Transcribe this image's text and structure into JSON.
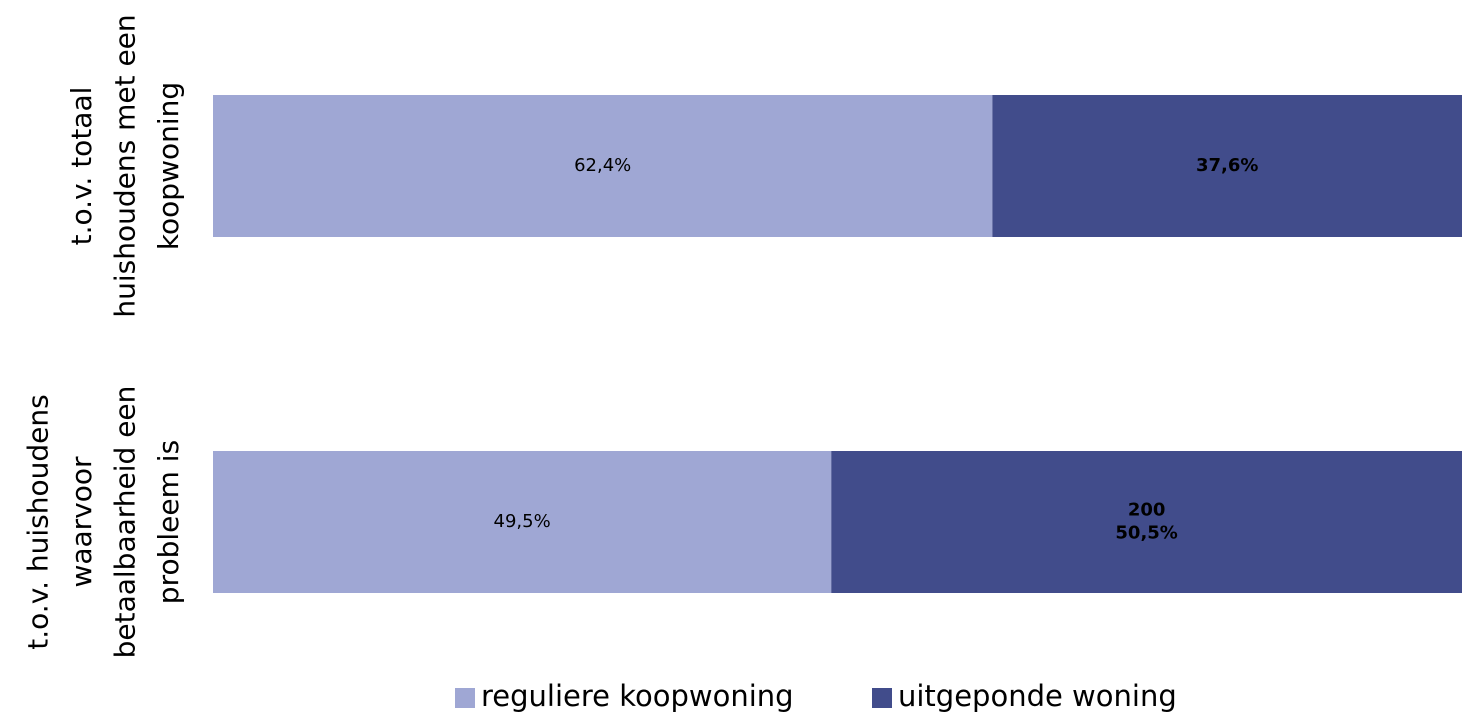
{
  "chart_data": {
    "type": "stacked_barh",
    "categories": [
      [
        "t.o.v. totaal",
        "huishoudens met een",
        "koopwoning"
      ],
      [
        "t.o.v. huishoudens",
        "waarvoor",
        "betaalbaarheid een",
        "probleem is"
      ]
    ],
    "series": [
      {
        "name": "reguliere koopwoning",
        "color": "#9fa7d4",
        "values": [
          62.4,
          49.5
        ],
        "value_labels": [
          "62,4%",
          "49,5%"
        ]
      },
      {
        "name": "uitgeponde woning",
        "color": "#414c8b",
        "values": [
          37.6,
          50.5
        ],
        "value_labels": [
          "37,6%",
          [
            "200",
            "50,5%"
          ]
        ]
      }
    ],
    "xlim": [
      0,
      100
    ],
    "legend": "bottom"
  }
}
